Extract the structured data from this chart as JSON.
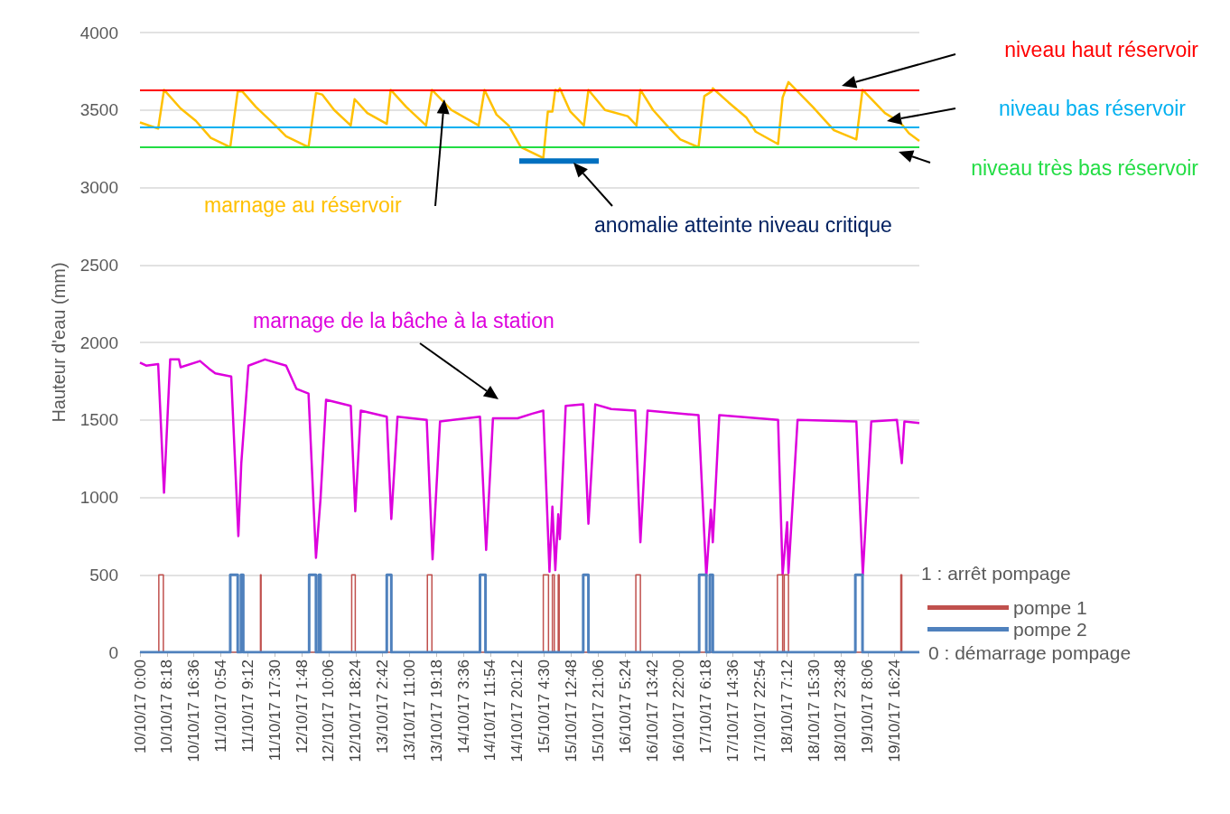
{
  "chart_data": {
    "type": "line",
    "ylabel": "Hauteur d'eau (mm)",
    "xlim": [
      "--10-10T00:00",
      "--10-20T00:00"
    ],
    "xticks": [
      {
        "value": "--10-10T00:00",
        "label": "10/10/17 0:00"
      },
      {
        "value": "--10-10T08:18",
        "label": "10/10/17 8:18"
      },
      {
        "value": "--10-10T16:36",
        "label": "10/10/17 16:36"
      },
      {
        "value": "--10-11T00:54",
        "label": "11/10/17 0:54"
      },
      {
        "value": "--10-11T09:12",
        "label": "11/10/17 9:12"
      },
      {
        "value": "--10-11T17:30",
        "label": "11/10/17 17:30"
      },
      {
        "value": "--10-12T01:48",
        "label": "12/10/17 1:48"
      },
      {
        "value": "--10-12T10:06",
        "label": "12/10/17 10:06"
      },
      {
        "value": "--10-12T18:24",
        "label": "12/10/17 18:24"
      },
      {
        "value": "--10-13T02:42",
        "label": "13/10/17 2:42"
      },
      {
        "value": "--10-13T11:00",
        "label": "13/10/17 11:00"
      },
      {
        "value": "--10-13T19:18",
        "label": "13/10/17 19:18"
      },
      {
        "value": "--10-14T03:36",
        "label": "14/10/17 3:36"
      },
      {
        "value": "--10-14T11:54",
        "label": "14/10/17 11:54"
      },
      {
        "value": "--10-14T20:12",
        "label": "14/10/17 20:12"
      },
      {
        "value": "--10-15T04:30",
        "label": "15/10/17 4:30"
      },
      {
        "value": "--10-15T12:48",
        "label": "15/10/17 12:48"
      },
      {
        "value": "--10-15T21:06",
        "label": "15/10/17 21:06"
      },
      {
        "value": "--10-16T05:24",
        "label": "16/10/17 5:24"
      },
      {
        "value": "--10-16T13:42",
        "label": "16/10/17 13:42"
      },
      {
        "value": "--10-16T22:00",
        "label": "16/10/17 22:00"
      },
      {
        "value": "--10-17T06:18",
        "label": "17/10/17 6:18"
      },
      {
        "value": "--10-17T14:36",
        "label": "17/10/17 14:36"
      },
      {
        "value": "--10-17T22:54",
        "label": "17/10/17 22:54"
      },
      {
        "value": "--10-18T07:12",
        "label": "18/10/17 7:12"
      },
      {
        "value": "--10-18T15:30",
        "label": "18/10/17 15:30"
      },
      {
        "value": "--10-18T23:48",
        "label": "18/10/17 23:48"
      },
      {
        "value": "--10-19T08:06",
        "label": "19/10/17 8:06"
      },
      {
        "value": "--10-19T16:24",
        "label": "19/10/17 16:24"
      }
    ],
    "ylim": [
      0,
      4000
    ],
    "yticks": [
      0,
      500,
      1000,
      1500,
      2000,
      2500,
      3000,
      3500,
      4000
    ],
    "grid": "y",
    "legend": "right",
    "marker": "none",
    "line_style": "solid",
    "series": [
      {
        "name": "marnage au réservoir",
        "color": "#ffc000",
        "x": [
          "--10-10T00:00",
          "--10-10T05:36",
          "--10-10T07:24",
          "--10-10T12:30",
          "--10-10T17:12",
          "--10-10T21:48",
          "--10-11T03:48",
          "--10-11T06:06",
          "--10-11T07:30",
          "--10-11T11:42",
          "--10-11T17:12",
          "--10-11T21:00",
          "--10-12T03:54",
          "--10-12T06:12",
          "--10-12T08:06",
          "--10-12T11:48",
          "--10-12T16:54",
          "--10-12T18:06",
          "--10-12T22:00",
          "--10-13T04:00",
          "--10-13T05:12",
          "--10-13T10:00",
          "--10-13T16:06",
          "--10-13T17:54",
          "--10-13T23:54",
          "--10-14T08:18",
          "--10-14T10:06",
          "--10-14T13:48",
          "--10-14T17:30",
          "--10-14T21:18",
          "--10-15T04:12",
          "--10-15T05:36",
          "--10-15T07:00",
          "--10-15T07:54",
          "--10-15T08:48",
          "--10-15T09:18",
          "--10-15T12:30",
          "--10-15T16:42",
          "--10-15T18:06",
          "--10-15T23:12",
          "--10-16T06:12",
          "--10-16T08:54",
          "--10-16T10:06",
          "--10-16T14:00",
          "--10-16T18:42",
          "--10-16T22:24",
          "--10-17T04:00",
          "--10-17T05:48",
          "--10-17T08:06",
          "--10-17T08:24",
          "--10-17T13:12",
          "--10-17T18:48",
          "--10-17T21:36",
          "--10-18T04:30",
          "--10-18T05:54",
          "--10-18T07:42",
          "--10-18T15:12",
          "--10-18T21:42",
          "--10-19T04:36",
          "--10-19T06:30",
          "--10-19T13:24",
          "--10-19T18:06",
          "--10-19T20:48",
          "--10-20T00:00"
        ],
        "values": [
          3420,
          3380,
          3630,
          3510,
          3430,
          3320,
          3260,
          3620,
          3620,
          3520,
          3410,
          3330,
          3260,
          3610,
          3600,
          3500,
          3400,
          3570,
          3480,
          3410,
          3630,
          3520,
          3400,
          3630,
          3500,
          3400,
          3630,
          3470,
          3400,
          3260,
          3190,
          3490,
          3490,
          3630,
          3620,
          3640,
          3490,
          3400,
          3630,
          3500,
          3460,
          3400,
          3630,
          3500,
          3390,
          3310,
          3260,
          3590,
          3620,
          3640,
          3550,
          3450,
          3360,
          3280,
          3580,
          3680,
          3520,
          3370,
          3310,
          3630,
          3480,
          3420,
          3350,
          3300
        ]
      },
      {
        "name": "marnage de la bâche à la station",
        "color": "#dd00dd",
        "x": [
          "--10-10T00:00",
          "--10-10T01:54",
          "--10-10T05:36",
          "--10-10T07:24",
          "--10-10T09:18",
          "--10-10T12:00",
          "--10-10T12:30",
          "--10-10T18:30",
          "--10-10T21:18",
          "--10-10T23:12",
          "--10-11T04:06",
          "--10-11T06:18",
          "--10-11T07:12",
          "--10-11T09:24",
          "--10-11T14:30",
          "--10-11T21:00",
          "--10-12T00:12",
          "--10-12T03:54",
          "--10-12T06:12",
          "--10-12T07:36",
          "--10-12T09:18",
          "--10-12T16:54",
          "--10-12T18:18",
          "--10-12T20:00",
          "--10-13T04:00",
          "--10-13T05:24",
          "--10-13T07:18",
          "--10-13T16:18",
          "--10-13T18:06",
          "--10-13T20:24",
          "--10-14T08:42",
          "--10-14T10:36",
          "--10-14T12:42",
          "--10-14T20:18",
          "--10-15T00:48",
          "--10-15T04:12",
          "--10-15T06:06",
          "--10-15T07:00",
          "--10-15T07:54",
          "--10-15T08:48",
          "--10-15T09:18",
          "--10-15T11:06",
          "--10-15T16:30",
          "--10-15T18:06",
          "--10-15T20:12",
          "--10-16T01:06",
          "--10-16T08:30",
          "--10-16T10:06",
          "--10-16T12:18",
          "--10-17T04:00",
          "--10-17T06:24",
          "--10-17T07:48",
          "--10-17T08:24",
          "--10-17T10:24",
          "--10-18T04:30",
          "--10-18T05:54",
          "--10-18T07:18",
          "--10-18T07:42",
          "--10-18T10:30",
          "--10-19T04:36",
          "--10-19T06:36",
          "--10-19T09:12",
          "--10-19T17:06",
          "--10-19T18:36",
          "--10-19T19:24",
          "--10-20T00:00"
        ],
        "values": [
          1870,
          1850,
          1860,
          1030,
          1890,
          1890,
          1840,
          1880,
          1830,
          1800,
          1780,
          750,
          1220,
          1850,
          1890,
          1850,
          1700,
          1670,
          610,
          990,
          1630,
          1590,
          910,
          1560,
          1520,
          860,
          1520,
          1500,
          600,
          1490,
          1520,
          660,
          1510,
          1510,
          1540,
          1560,
          520,
          940,
          530,
          890,
          730,
          1590,
          1600,
          830,
          1600,
          1570,
          1560,
          710,
          1560,
          1530,
          490,
          920,
          710,
          1530,
          1500,
          500,
          840,
          510,
          1500,
          1490,
          500,
          1490,
          1500,
          1220,
          1490,
          1480
        ]
      },
      {
        "name": "anomalie atteinte niveau critique",
        "color": "#0070c0",
        "x": [
          "--10-14T20:48",
          "--10-15T21:18"
        ],
        "values": [
          3170,
          3170
        ]
      },
      {
        "name": "pompe 1",
        "type": "step",
        "color": "#c0504d",
        "x": [
          "--10-10T00:00",
          "--10-10T05:48",
          "--10-10T07:12",
          "--10-11T13:06",
          "--10-11T13:18",
          "--10-12T17:12",
          "--10-12T18:18",
          "--10-13T16:30",
          "--10-13T17:54",
          "--10-15T04:12",
          "--10-15T05:48",
          "--10-15T07:00",
          "--10-15T07:36",
          "--10-15T08:48",
          "--10-15T09:06",
          "--10-16T08:42",
          "--10-16T10:06",
          "--10-18T04:18",
          "--10-18T05:54",
          "--10-18T06:24",
          "--10-18T07:42",
          "--10-19T18:18",
          "--10-19T18:36",
          "--10-20T00:00"
        ],
        "values": [
          0,
          500,
          0,
          500,
          0,
          500,
          0,
          500,
          0,
          500,
          0,
          500,
          0,
          500,
          0,
          500,
          0,
          500,
          0,
          500,
          0,
          500,
          0,
          0
        ]
      },
      {
        "name": "pompe 2",
        "type": "step",
        "color": "#4f81bd",
        "x": [
          "--10-10T00:00",
          "--10-11T03:48",
          "--10-11T06:06",
          "--10-11T07:06",
          "--10-11T07:48",
          "--10-12T04:06",
          "--10-12T06:12",
          "--10-12T07:06",
          "--10-12T07:36",
          "--10-13T04:00",
          "--10-13T05:24",
          "--10-14T08:42",
          "--10-14T10:24",
          "--10-15T16:30",
          "--10-15T18:06",
          "--10-17T04:12",
          "--10-17T06:24",
          "--10-17T07:30",
          "--10-17T08:24",
          "--10-19T04:18",
          "--10-19T06:30",
          "--10-20T00:00"
        ],
        "values": [
          0,
          500,
          0,
          500,
          0,
          500,
          0,
          500,
          0,
          500,
          0,
          500,
          0,
          500,
          0,
          500,
          0,
          500,
          0,
          500,
          0,
          0
        ]
      }
    ],
    "ref_lines": [
      {
        "axis": "y",
        "value": 3630,
        "label": "niveau haut réservoir",
        "color": "#ff0000"
      },
      {
        "axis": "y",
        "value": 3390,
        "label": "niveau bas réservoir",
        "color": "#00b0f0"
      },
      {
        "axis": "y",
        "value": 3260,
        "label": "niveau très bas réservoir",
        "color": "#22dd44"
      }
    ],
    "annotations": [
      "1 : arrêt pompage",
      "0 : démarrage pompage"
    ]
  }
}
